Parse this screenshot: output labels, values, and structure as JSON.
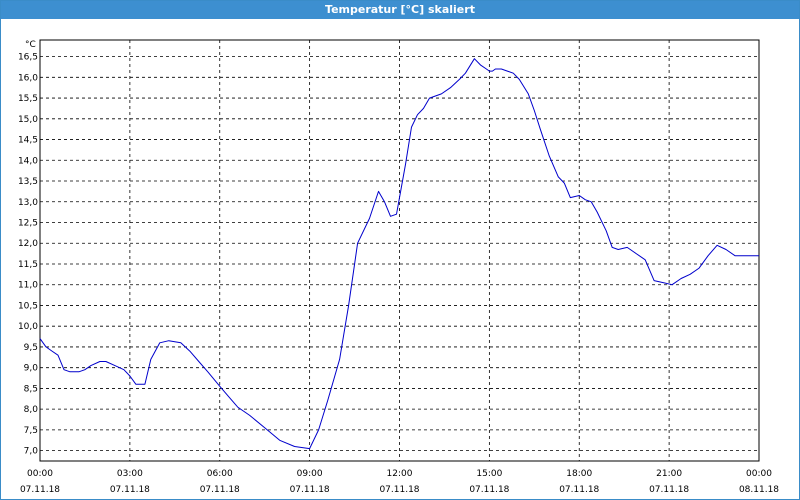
{
  "window": {
    "title": "Temperatur [°C] skaliert"
  },
  "chart_data": {
    "type": "line",
    "title": "Temperatur [°C] skaliert",
    "ylabel": "°C",
    "xlabel": "",
    "ylim": [
      6.75,
      16.9
    ],
    "xlim": [
      0,
      24
    ],
    "y_ticks": [
      "7,0",
      "7,5",
      "8,0",
      "8,5",
      "9,0",
      "9,5",
      "10,0",
      "10,5",
      "11,0",
      "11,5",
      "12,0",
      "12,5",
      "13,0",
      "13,5",
      "14,0",
      "14,5",
      "15,0",
      "15,5",
      "16,0",
      "16,5"
    ],
    "y_tick_values": [
      7.0,
      7.5,
      8.0,
      8.5,
      9.0,
      9.5,
      10.0,
      10.5,
      11.0,
      11.5,
      12.0,
      12.5,
      13.0,
      13.5,
      14.0,
      14.5,
      15.0,
      15.5,
      16.0,
      16.5
    ],
    "x_ticks": [
      {
        "hour": 0,
        "time": "00:00",
        "date": "07.11.18"
      },
      {
        "hour": 3,
        "time": "03:00",
        "date": "07.11.18"
      },
      {
        "hour": 6,
        "time": "06:00",
        "date": "07.11.18"
      },
      {
        "hour": 9,
        "time": "09:00",
        "date": "07.11.18"
      },
      {
        "hour": 12,
        "time": "12:00",
        "date": "07.11.18"
      },
      {
        "hour": 15,
        "time": "15:00",
        "date": "07.11.18"
      },
      {
        "hour": 18,
        "time": "18:00",
        "date": "07.11.18"
      },
      {
        "hour": 21,
        "time": "21:00",
        "date": "07.11.18"
      },
      {
        "hour": 24,
        "time": "00:00",
        "date": "08.11.18"
      }
    ],
    "grid": true,
    "series": [
      {
        "color": "#0000cc",
        "x": [
          0,
          0.2,
          0.4,
          0.6,
          0.8,
          1.0,
          1.3,
          1.5,
          1.7,
          2.0,
          2.2,
          2.5,
          2.8,
          3.0,
          3.2,
          3.5,
          3.7,
          4.0,
          4.3,
          4.7,
          5.0,
          5.3,
          5.6,
          6.0,
          6.3,
          6.6,
          7.0,
          7.5,
          8.0,
          8.5,
          9.0,
          9.3,
          9.6,
          10.0,
          10.3,
          10.6,
          11.0,
          11.3,
          11.5,
          11.7,
          11.9,
          12.0,
          12.2,
          12.4,
          12.6,
          12.8,
          13.0,
          13.2,
          13.4,
          13.7,
          14.0,
          14.2,
          14.5,
          14.7,
          14.9,
          15.0,
          15.1,
          15.2,
          15.4,
          15.6,
          15.8,
          16.0,
          16.3,
          16.5,
          16.7,
          17.0,
          17.3,
          17.5,
          17.7,
          18.0,
          18.2,
          18.4,
          18.6,
          18.9,
          19.1,
          19.3,
          19.6,
          19.9,
          20.2,
          20.5,
          20.8,
          21.1,
          21.4,
          21.7,
          22.0,
          22.3,
          22.6,
          22.9,
          23.2,
          23.5,
          23.8,
          24.0
        ],
        "values": [
          9.7,
          9.5,
          9.4,
          9.3,
          8.95,
          8.9,
          8.9,
          8.95,
          9.05,
          9.15,
          9.15,
          9.05,
          8.95,
          8.8,
          8.6,
          8.6,
          9.2,
          9.6,
          9.65,
          9.6,
          9.4,
          9.15,
          8.9,
          8.55,
          8.3,
          8.05,
          7.85,
          7.55,
          7.25,
          7.1,
          7.05,
          7.5,
          8.2,
          9.2,
          10.5,
          12.0,
          12.6,
          13.25,
          13.0,
          12.65,
          12.7,
          13.1,
          13.9,
          14.8,
          15.1,
          15.25,
          15.5,
          15.55,
          15.6,
          15.75,
          15.95,
          16.1,
          16.45,
          16.3,
          16.2,
          16.15,
          16.15,
          16.2,
          16.2,
          16.15,
          16.1,
          15.95,
          15.6,
          15.2,
          14.75,
          14.1,
          13.6,
          13.45,
          13.1,
          13.15,
          13.05,
          13.0,
          12.75,
          12.3,
          11.9,
          11.85,
          11.9,
          11.75,
          11.6,
          11.1,
          11.05,
          11.0,
          11.15,
          11.25,
          11.4,
          11.7,
          11.95,
          11.85,
          11.7,
          11.7,
          11.7,
          11.7
        ]
      }
    ]
  }
}
